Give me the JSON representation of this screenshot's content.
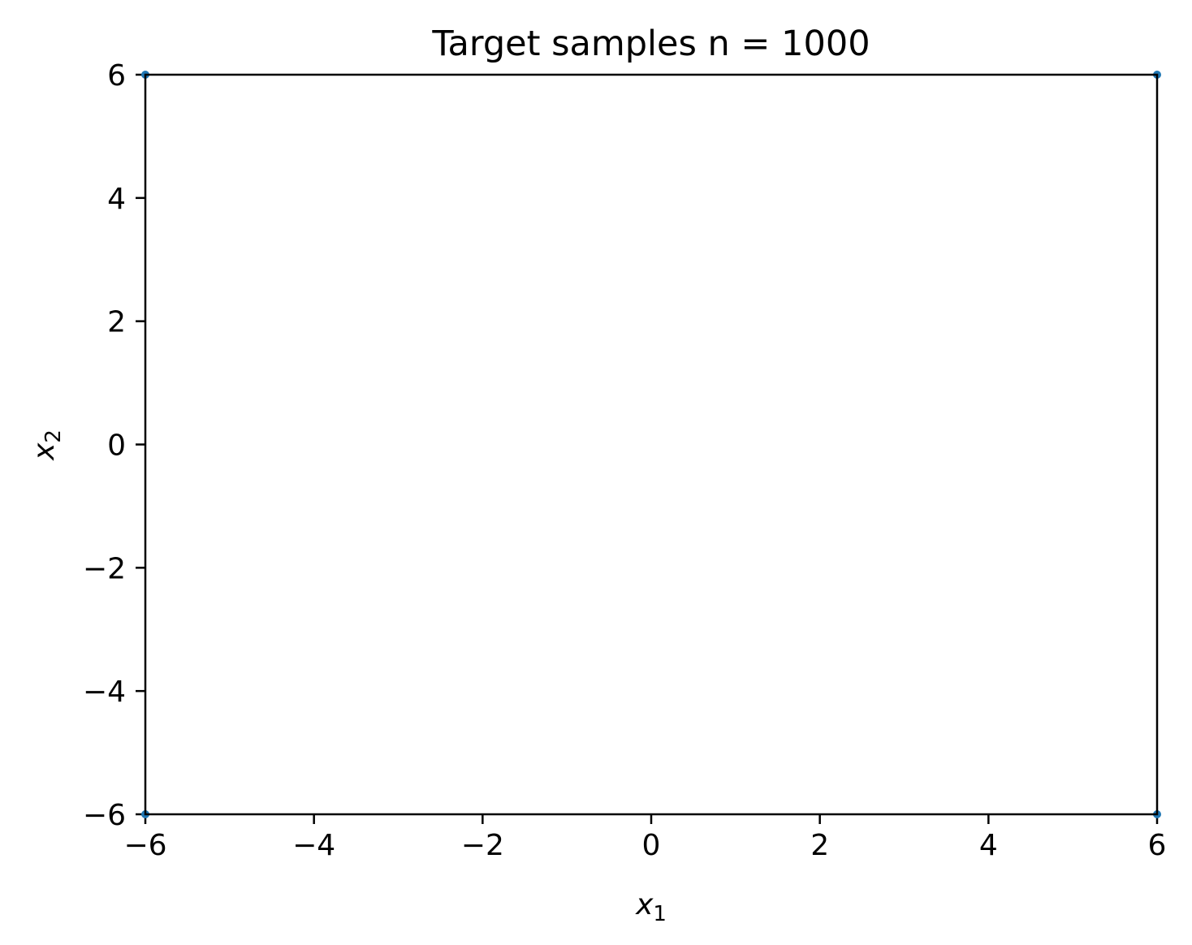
{
  "chart_data": {
    "type": "scatter",
    "title": "Target samples n = 1000",
    "xlabel": {
      "base": "x",
      "sub": "1"
    },
    "ylabel": {
      "base": "x",
      "sub": "2"
    },
    "xlim": [
      -6,
      6
    ],
    "ylim": [
      -6,
      6
    ],
    "xticks": [
      -6,
      -4,
      -2,
      0,
      2,
      4,
      6
    ],
    "yticks": [
      -6,
      -4,
      -2,
      0,
      2,
      4,
      6
    ],
    "xtick_labels": [
      "−6",
      "−4",
      "−2",
      "0",
      "2",
      "4",
      "6"
    ],
    "ytick_labels": [
      "−6",
      "−4",
      "−2",
      "0",
      "2",
      "4",
      "6"
    ],
    "grid": false,
    "series": [
      {
        "color": "#1f77b4",
        "points": [
          {
            "x": -6,
            "y": 6
          },
          {
            "x": 6,
            "y": 6
          },
          {
            "x": -6,
            "y": -6
          },
          {
            "x": 6,
            "y": -6
          }
        ]
      }
    ]
  }
}
